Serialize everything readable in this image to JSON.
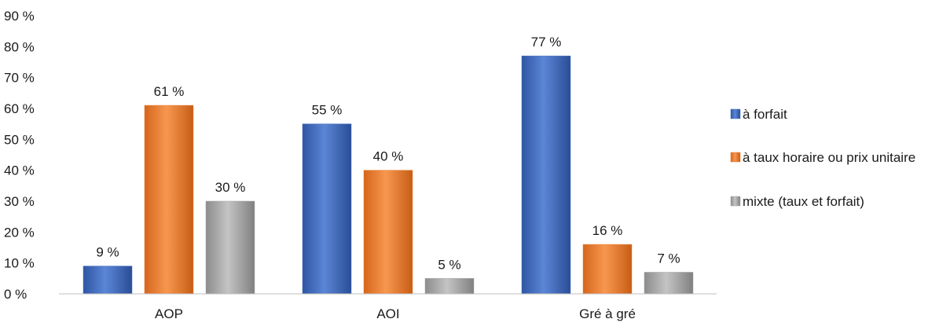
{
  "chart_data": {
    "type": "bar",
    "title": "",
    "xlabel": "",
    "ylabel": "",
    "categories": [
      "AOP",
      "AOI",
      "Gré à gré"
    ],
    "series": [
      {
        "name": "à forfait",
        "values": [
          9,
          55,
          77
        ],
        "labels": [
          "9 %",
          "55 %",
          "77 %"
        ],
        "color": "#4472c4"
      },
      {
        "name": "à taux horaire ou prix unitaire",
        "values": [
          61,
          40,
          16
        ],
        "labels": [
          "61 %",
          "40 %",
          "16 %"
        ],
        "color": "#ed7d31"
      },
      {
        "name": "mixte (taux et forfait)",
        "values": [
          30,
          5,
          7
        ],
        "labels": [
          "30 %",
          "5 %",
          "7 %"
        ],
        "color": "#a5a5a5"
      }
    ],
    "ylim": [
      0,
      90
    ],
    "yticks": [
      0,
      10,
      20,
      30,
      40,
      50,
      60,
      70,
      80,
      90
    ],
    "ytick_labels": [
      "0 %",
      "10 %",
      "20 %",
      "30 %",
      "40 %",
      "50 %",
      "60 %",
      "70 %",
      "80 %",
      "90 %"
    ],
    "grid": false,
    "legend_position": "right"
  }
}
